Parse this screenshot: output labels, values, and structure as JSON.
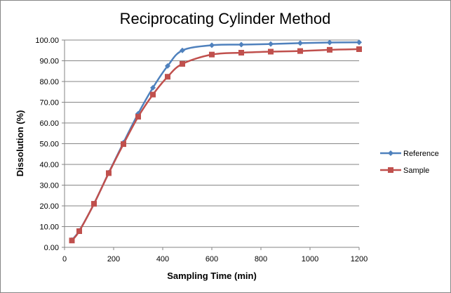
{
  "chart_data": {
    "type": "line",
    "title": "Reciprocating Cylinder Method",
    "xlabel": "Sampling Time (min)",
    "ylabel": "Dissolution (%)",
    "xlim": [
      0,
      1200
    ],
    "ylim": [
      0,
      100
    ],
    "xticks": [
      "0",
      "200",
      "400",
      "600",
      "800",
      "1000",
      "1200"
    ],
    "yticks": [
      "0.00",
      "10.00",
      "20.00",
      "30.00",
      "40.00",
      "50.00",
      "60.00",
      "70.00",
      "80.00",
      "90.00",
      "100.00"
    ],
    "grid": "horizontal",
    "legend_position": "right",
    "series": [
      {
        "name": "Reference",
        "color": "#4F81BD",
        "marker": "diamond",
        "x": [
          30,
          60,
          120,
          180,
          240,
          300,
          360,
          420,
          480,
          600,
          720,
          840,
          960,
          1080,
          1200
        ],
        "y": [
          3.5,
          8.0,
          21.0,
          36.0,
          50.5,
          64.5,
          77.0,
          87.5,
          95.0,
          97.5,
          97.8,
          98.1,
          98.5,
          98.8,
          98.9
        ]
      },
      {
        "name": "Sample",
        "color": "#C0504D",
        "marker": "square",
        "x": [
          30,
          60,
          120,
          180,
          240,
          300,
          360,
          420,
          480,
          600,
          720,
          840,
          960,
          1080,
          1200
        ],
        "y": [
          3.3,
          7.8,
          21.0,
          35.8,
          49.8,
          63.0,
          73.7,
          82.3,
          88.5,
          93.0,
          93.9,
          94.4,
          94.7,
          95.3,
          95.6
        ]
      }
    ]
  }
}
